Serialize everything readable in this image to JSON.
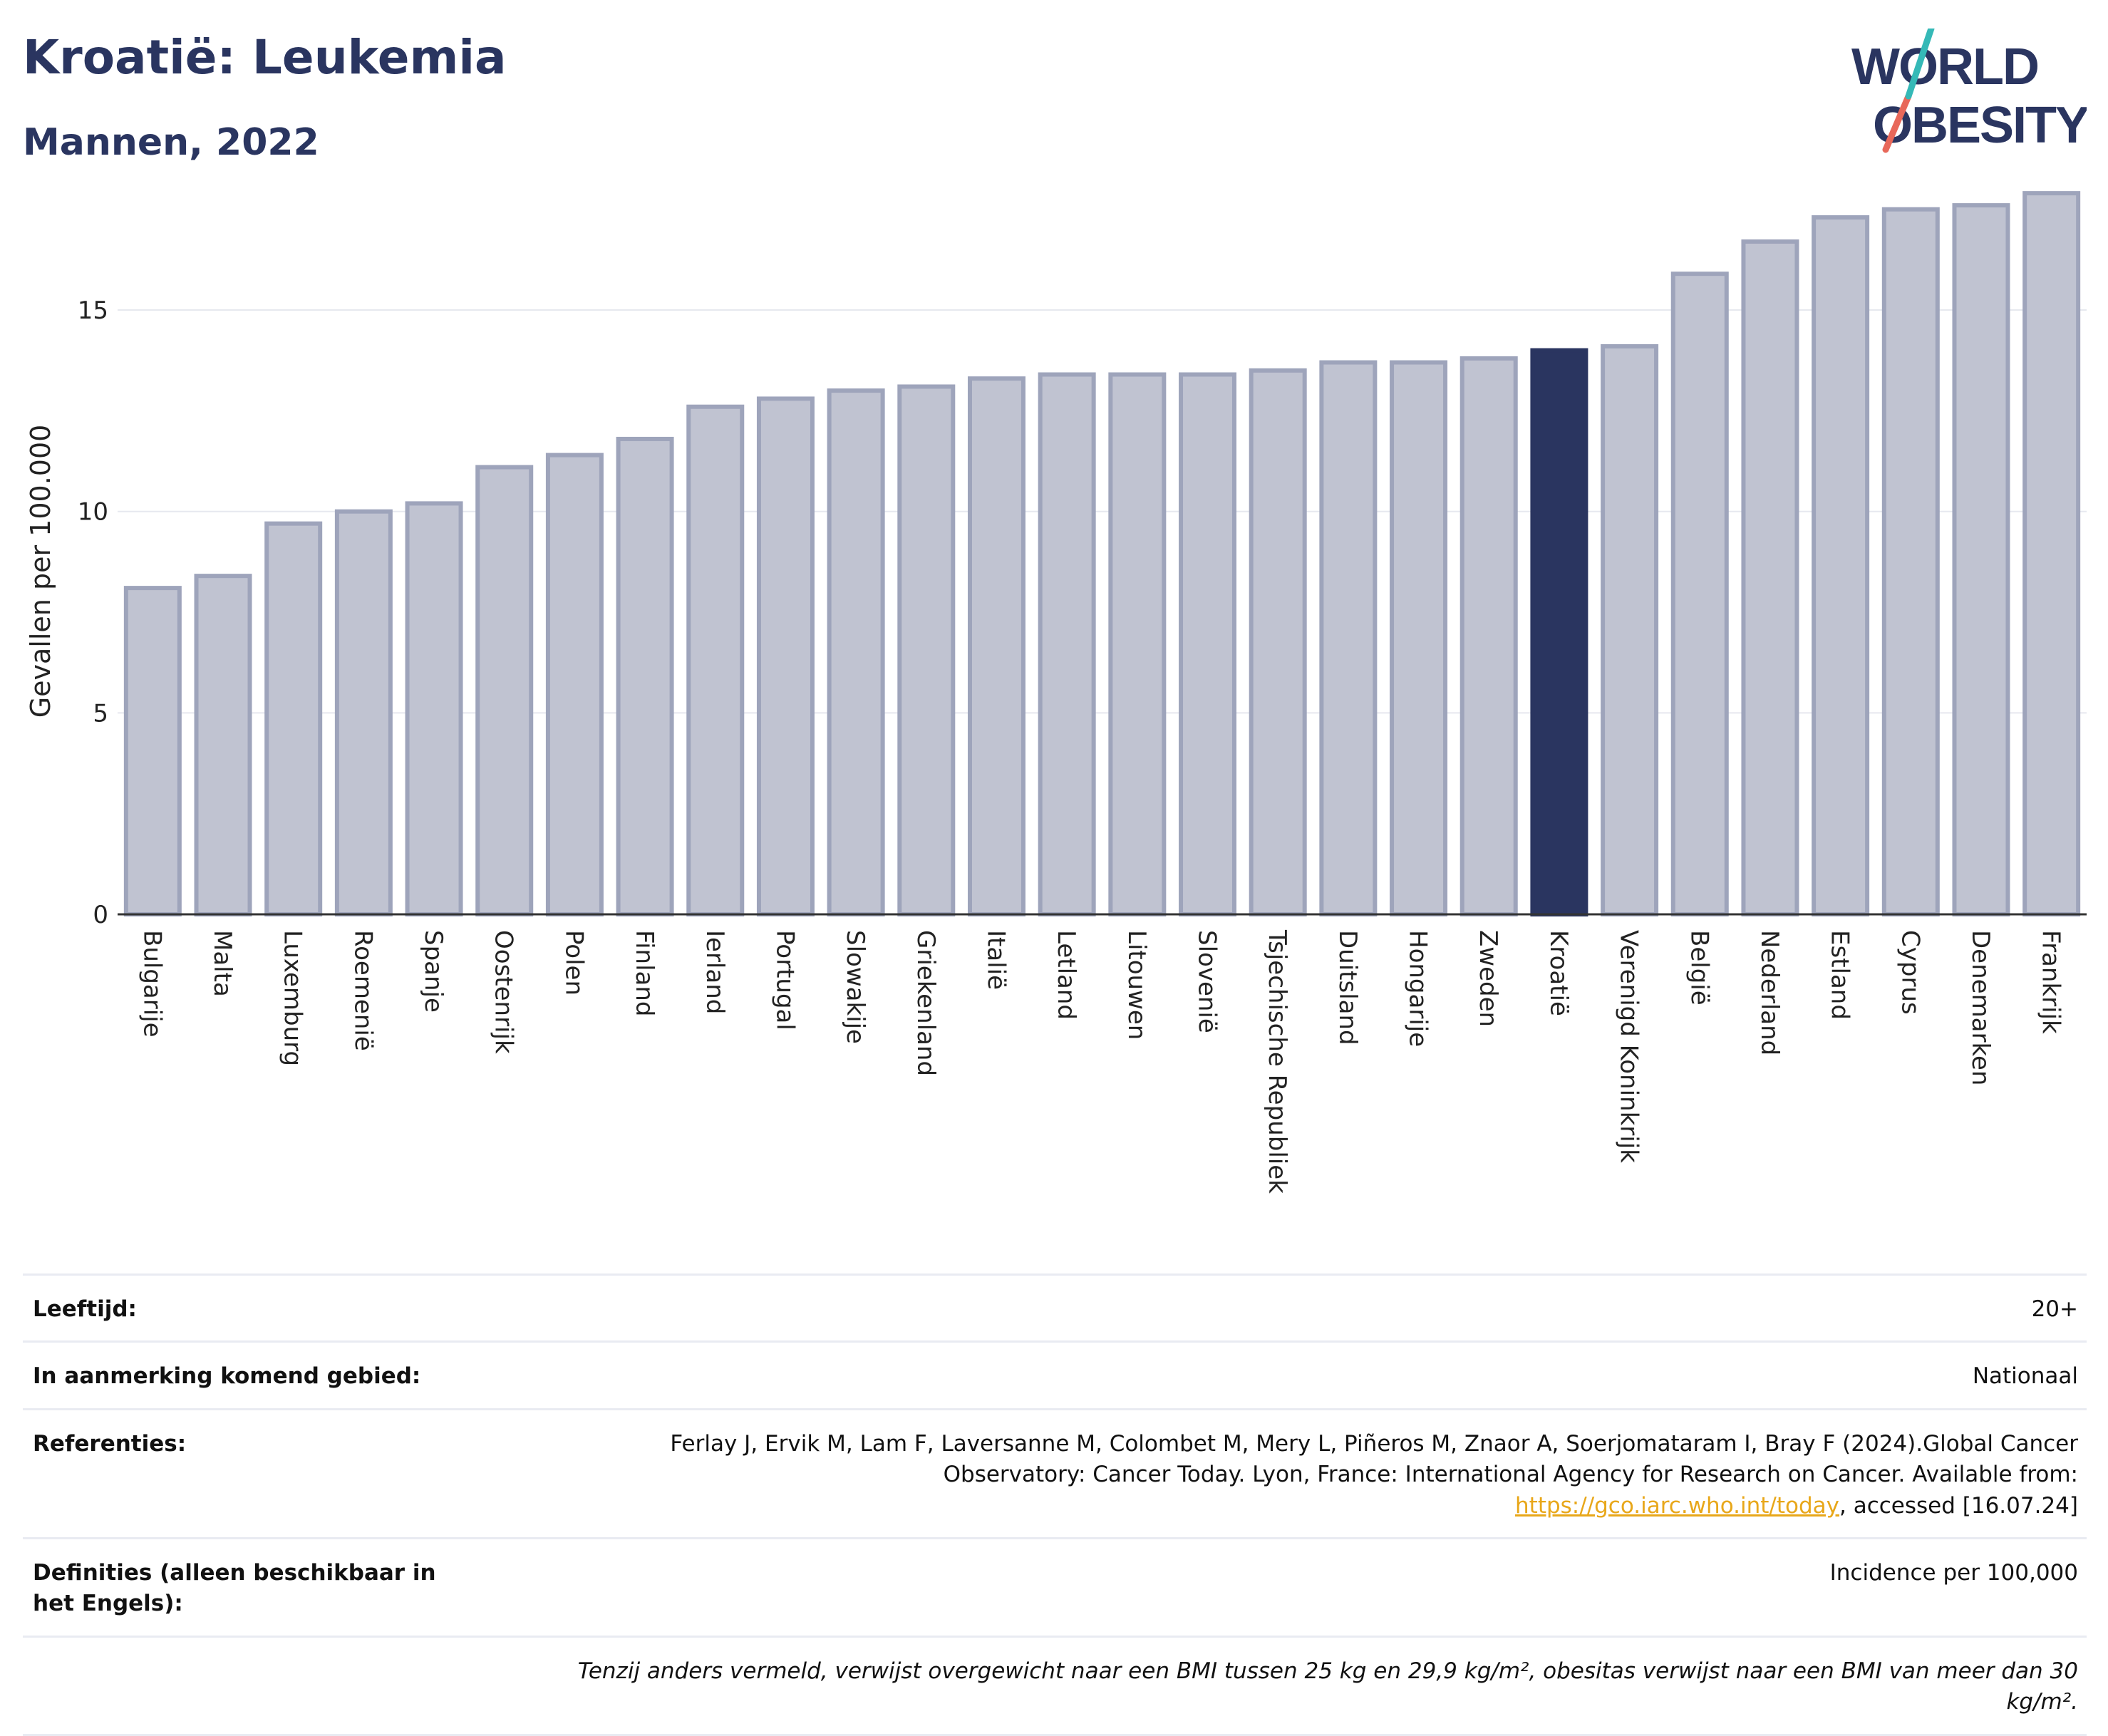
{
  "header": {
    "title": "Kroatië: Leukemia",
    "subtitle": "Mannen, 2022"
  },
  "logo": {
    "line1": "WORLD",
    "line2": "OBESITY"
  },
  "colors": {
    "highlight": "#2a3560",
    "bar": "#c0c3d1",
    "bar_border": "#9ea4bb",
    "brand_teal": "#35b9b7",
    "brand_coral": "#e8685a",
    "link": "#e8a71a"
  },
  "chart_data": {
    "type": "bar",
    "ylabel": "Gevallen per 100.000",
    "ylim": [
      0,
      18
    ],
    "yticks": [
      0,
      5,
      10,
      15
    ],
    "highlight": "Kroatië",
    "categories": [
      "Bulgarije",
      "Malta",
      "Luxemburg",
      "Roemenië",
      "Spanje",
      "Oostenrijk",
      "Polen",
      "Finland",
      "Ierland",
      "Portugal",
      "Slowakije",
      "Griekenland",
      "Italië",
      "Letland",
      "Litouwen",
      "Slovenië",
      "Tsjechische Republiek",
      "Duitsland",
      "Hongarije",
      "Zweden",
      "Kroatië",
      "Verenigd Koninkrijk",
      "België",
      "Nederland",
      "Estland",
      "Cyprus",
      "Denemarken",
      "Frankrijk"
    ],
    "values": [
      8.1,
      8.4,
      9.7,
      10.0,
      10.2,
      11.1,
      11.4,
      11.8,
      12.6,
      12.8,
      13.0,
      13.1,
      13.3,
      13.4,
      13.4,
      13.4,
      13.5,
      13.7,
      13.7,
      13.8,
      14.0,
      14.1,
      15.9,
      16.7,
      17.3,
      17.5,
      17.6,
      17.9
    ],
    "grid": true
  },
  "info": {
    "age_label": "Leeftijd:",
    "age_value": "20+",
    "area_label": "In aanmerking komend gebied:",
    "area_value": "Nationaal",
    "ref_label": "Referenties:",
    "ref_text_1": "Ferlay J, Ervik M, Lam F, Laversanne M, Colombet M, Mery L, Piñeros M, Znaor A, Soerjomataram I, Bray F (2024).Global Cancer Observatory: Cancer Today. Lyon, France: International Agency for Research on Cancer. Available from: ",
    "ref_link": "https://gco.iarc.who.int/today",
    "ref_text_2": ", accessed [16.07.24]",
    "def_label": "Definities (alleen beschikbaar in het Engels):",
    "def_value": "Incidence per 100,000",
    "note": "Tenzij anders vermeld, verwijst overgewicht naar een BMI tussen 25 kg en 29,9 kg/m², obesitas verwijst naar een BMI van meer dan 30 kg/m²."
  }
}
